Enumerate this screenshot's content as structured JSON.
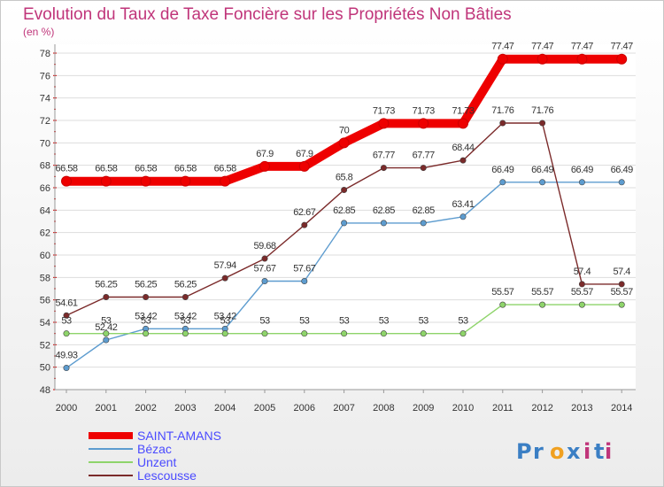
{
  "chart_data": {
    "type": "line",
    "title": "Evolution du Taux de Taxe Foncière sur les Propriétés Non Bâties",
    "ylabel": "(en %)",
    "xlabel": "",
    "x": [
      "2000",
      "2001",
      "2002",
      "2003",
      "2004",
      "2005",
      "2006",
      "2007",
      "2008",
      "2009",
      "2010",
      "2011",
      "2012",
      "2013",
      "2014"
    ],
    "ylim": [
      48,
      78
    ],
    "yticks": [
      48,
      50,
      52,
      54,
      56,
      58,
      60,
      62,
      64,
      66,
      68,
      70,
      72,
      74,
      76,
      78
    ],
    "grid": "horizontal",
    "legend_position": "bottom-left",
    "series": [
      {
        "name": "SAINT-AMANS",
        "color": "#ee0000",
        "text_color": "#4a4aff",
        "values": [
          66.58,
          66.58,
          66.58,
          66.58,
          66.58,
          67.9,
          67.9,
          70,
          71.73,
          71.73,
          71.73,
          77.47,
          77.47,
          77.47,
          77.47
        ],
        "labels": [
          "66.58",
          "66.58",
          "66.58",
          "66.58",
          "66.58",
          "67.9",
          "67.9",
          "70",
          "71.73",
          "71.73",
          "71.73",
          "77.47",
          "77.47",
          "77.47",
          "77.47"
        ]
      },
      {
        "name": "Bézac",
        "color": "#5d9ccf",
        "text_color": "#4a4aff",
        "values": [
          49.93,
          52.42,
          53.42,
          53.42,
          53.42,
          57.67,
          57.67,
          62.85,
          62.85,
          62.85,
          63.41,
          66.49,
          66.49,
          66.49,
          66.49
        ],
        "labels": [
          "49.93",
          "52.42",
          "53.42",
          "53.42",
          "53.42",
          "57.67",
          "57.67",
          "62.85",
          "62.85",
          "62.85",
          "63.41",
          "66.49",
          "66.49",
          "66.49",
          "66.49"
        ]
      },
      {
        "name": "Unzent",
        "color": "#8ed46a",
        "text_color": "#4a4aff",
        "values": [
          53,
          53,
          53,
          53,
          53,
          53,
          53,
          53,
          53,
          53,
          53,
          55.57,
          55.57,
          55.57,
          55.57
        ],
        "labels": [
          "53",
          "53",
          "53",
          "53",
          "53",
          "53",
          "53",
          "53",
          "53",
          "53",
          "53",
          "55.57",
          "55.57",
          "55.57",
          "55.57"
        ]
      },
      {
        "name": "Lescousse",
        "color": "#7b2a2a",
        "text_color": "#4a4aff",
        "values": [
          54.61,
          56.25,
          56.25,
          56.25,
          57.94,
          59.68,
          62.67,
          65.8,
          67.77,
          67.77,
          68.44,
          71.76,
          71.76,
          57.4,
          57.4
        ],
        "labels": [
          "54.61",
          "56.25",
          "56.25",
          "56.25",
          "57.94",
          "59.68",
          "62.67",
          "65.8",
          "67.77",
          "67.77",
          "68.44",
          "71.76",
          "71.76",
          "57.4",
          "57.4"
        ]
      }
    ]
  },
  "brand": {
    "letters": [
      "P",
      "r",
      "o",
      "x",
      "i",
      "t",
      "i"
    ]
  }
}
